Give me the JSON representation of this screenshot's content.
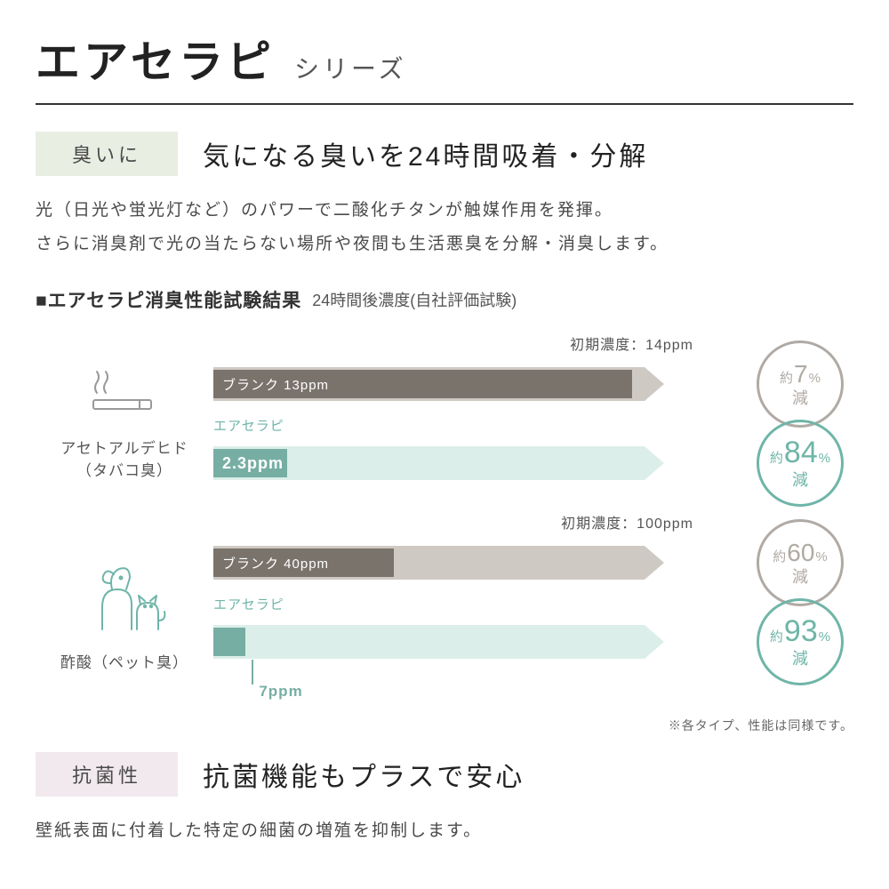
{
  "header": {
    "title": "エアセラピ",
    "subtitle": "シリーズ"
  },
  "section1": {
    "tag_label": "臭いに",
    "tag_bg": "#e9eee3",
    "headline": "気になる臭いを24時間吸着・分解",
    "desc_line1": "光（日光や蛍光灯など）のパワーで二酸化チタンが触媒作用を発揮。",
    "desc_line2": "さらに消臭剤で光の当たらない場所や夜間も生活悪臭を分解・消臭します。"
  },
  "chart": {
    "title": "■エアセラピ消臭性能試験結果",
    "subtitle": "24時間後濃度(自社評価試験)",
    "track_full_width_pct": 86,
    "light_brown_arrow_color": "#cfc9c3",
    "light_teal_arrow_color": "#dceee9",
    "brown_bar_color": "#7a736c",
    "teal_bar_color": "#77aea4",
    "teal_text_color": "#6fb5a8",
    "gray_circle_color": "#b0aaa4",
    "teal_circle_color": "#6fb5a8",
    "groups": [
      {
        "id": "acetaldehyde",
        "icon": "cigarette",
        "label_line1": "アセトアルデヒド",
        "label_line2": "（タバコ臭）",
        "initial_label": "初期濃度：14ppm",
        "initial_ppm": 14,
        "blank_ppm": 13,
        "blank_label": "ブランク 13ppm",
        "product_label": "エアセラピ",
        "product_ppm": 2.3,
        "product_ppm_text": "2.3ppm",
        "product_ppm_in_bar": true,
        "blank_circle": {
          "prefix": "約",
          "num": "7",
          "pct": "%",
          "bottom": "減",
          "color": "gray"
        },
        "product_circle": {
          "prefix": "約",
          "num": "84",
          "pct": "%",
          "bottom": "減",
          "color": "teal"
        }
      },
      {
        "id": "acetic",
        "icon": "pet",
        "label_line1": "酢酸（ペット臭）",
        "label_line2": "",
        "initial_label": "初期濃度：100ppm",
        "initial_ppm": 100,
        "blank_ppm": 40,
        "blank_label": "ブランク 40ppm",
        "product_label": "エアセラピ",
        "product_ppm": 7,
        "product_ppm_text": "7ppm",
        "product_ppm_in_bar": false,
        "blank_circle": {
          "prefix": "約",
          "num": "60",
          "pct": "%",
          "bottom": "減",
          "color": "gray"
        },
        "product_circle": {
          "prefix": "約",
          "num": "93",
          "pct": "%",
          "bottom": "減",
          "color": "teal"
        }
      }
    ],
    "footnote": "※各タイプ、性能は同様です。"
  },
  "section2": {
    "tag_label": "抗菌性",
    "tag_bg": "#f1e9ed",
    "headline": "抗菌機能もプラスで安心",
    "desc": "壁紙表面に付着した特定の細菌の増殖を抑制します。"
  }
}
